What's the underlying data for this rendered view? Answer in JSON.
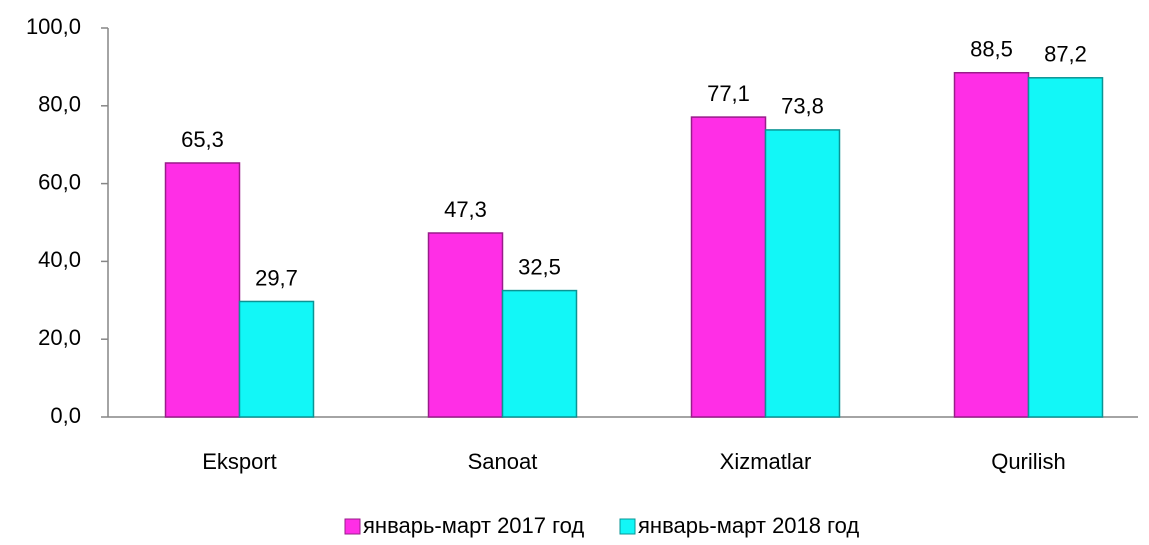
{
  "chart_data": {
    "type": "bar",
    "categories": [
      "Eksport",
      "Sanoat",
      "Xizmatlar",
      "Qurilish"
    ],
    "series": [
      {
        "name": "январь-март 2017 год",
        "color": "#ff2ee6",
        "values": [
          65.3,
          47.3,
          77.1,
          88.5
        ],
        "value_labels": [
          "65,3",
          "47,3",
          "77,1",
          "88,5"
        ]
      },
      {
        "name": "январь-март 2018 год",
        "color": "#12f7f7",
        "values": [
          29.7,
          32.5,
          73.8,
          87.2
        ],
        "value_labels": [
          "29,7",
          "32,5",
          "73,8",
          "87,2"
        ]
      }
    ],
    "ylim": [
      0,
      100
    ],
    "yticks": [
      {
        "value": 0,
        "label": "0,0"
      },
      {
        "value": 20,
        "label": "20,0"
      },
      {
        "value": 40,
        "label": "40,0"
      },
      {
        "value": 60,
        "label": "60,0"
      },
      {
        "value": 80,
        "label": "80,0"
      },
      {
        "value": 100,
        "label": "100,0"
      }
    ],
    "grid": false,
    "legend": "bottom"
  }
}
